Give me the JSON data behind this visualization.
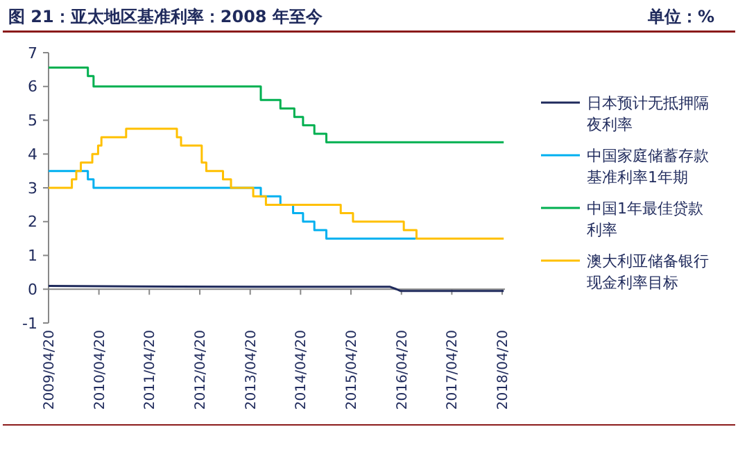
{
  "chart_data": {
    "type": "step",
    "title": "图 21：亚太地区基准利率：2008 年至今",
    "annotations": [
      "单位：%"
    ],
    "xlim": [
      "2009-04-20",
      "2018-05-10"
    ],
    "xticks": [
      {
        "value": "2009-04-20",
        "label": "2009/04/20"
      },
      {
        "value": "2010-04-20",
        "label": "2010/04/20"
      },
      {
        "value": "2011-04-20",
        "label": "2011/04/20"
      },
      {
        "value": "2012-04-20",
        "label": "2012/04/20"
      },
      {
        "value": "2013-04-20",
        "label": "2013/04/20"
      },
      {
        "value": "2014-04-20",
        "label": "2014/04/20"
      },
      {
        "value": "2015-04-20",
        "label": "2015/04/20"
      },
      {
        "value": "2016-04-20",
        "label": "2016/04/20"
      },
      {
        "value": "2017-04-20",
        "label": "2017/04/20"
      },
      {
        "value": "2018-04-20",
        "label": "2018/04/20"
      }
    ],
    "ylim": [
      -1,
      7
    ],
    "yticks": [
      -1,
      0,
      1,
      2,
      3,
      4,
      5,
      6,
      7
    ],
    "legend": "right",
    "series": [
      {
        "name": "日本预计无抵押隔夜利率",
        "type": "line",
        "color": "#1f2a5c",
        "x": [
          "2009-04-20",
          "2011-01-15",
          "2013-06-01",
          "2016-01-29",
          "2016-03-15",
          "2016-04-12",
          "2018-05-01"
        ],
        "values": [
          0.1,
          0.08,
          0.07,
          0.07,
          0.0,
          -0.05,
          -0.05
        ]
      },
      {
        "name": "中国家庭储蓄存款基准利率1年期",
        "color": "#00b0f0",
        "x": [
          "2009-04-20",
          "2010-01-30",
          "2010-03-12",
          "2013-07-06",
          "2013-11-25",
          "2014-02-25",
          "2014-05-08",
          "2014-07-29",
          "2014-10-24",
          "2016-07-31"
        ],
        "values": [
          3.5,
          3.25,
          3.0,
          2.75,
          2.5,
          2.25,
          2.0,
          1.75,
          1.5,
          1.5
        ]
      },
      {
        "name": "中国1年最佳贷款利率",
        "color": "#00b050",
        "x": [
          "2009-04-20",
          "2010-01-30",
          "2010-03-12",
          "2013-07-06",
          "2013-11-25",
          "2014-03-06",
          "2014-05-08",
          "2014-07-29",
          "2014-10-24",
          "2018-05-01"
        ],
        "values": [
          6.56,
          6.31,
          6.0,
          5.6,
          5.35,
          5.1,
          4.85,
          4.6,
          4.35,
          4.35
        ]
      },
      {
        "name": "澳大利亚储备银行现金利率目标",
        "color": "#ffc000",
        "x": [
          "2009-04-20",
          "2009-10-06",
          "2009-11-07",
          "2009-12-10",
          "2010-03-03",
          "2010-04-14",
          "2010-05-08",
          "2010-11-03",
          "2011-11-06",
          "2011-12-06",
          "2012-05-04",
          "2012-06-06",
          "2012-10-05",
          "2012-12-02",
          "2013-05-12",
          "2013-08-12",
          "2015-02-05",
          "2015-05-05",
          "2016-05-07",
          "2016-08-07",
          "2018-05-01"
        ],
        "values": [
          3.0,
          3.25,
          3.5,
          3.75,
          4.0,
          4.25,
          4.5,
          4.75,
          4.5,
          4.25,
          3.75,
          3.5,
          3.25,
          3.0,
          2.75,
          2.5,
          2.25,
          2.0,
          1.75,
          1.5,
          1.5
        ]
      }
    ]
  }
}
